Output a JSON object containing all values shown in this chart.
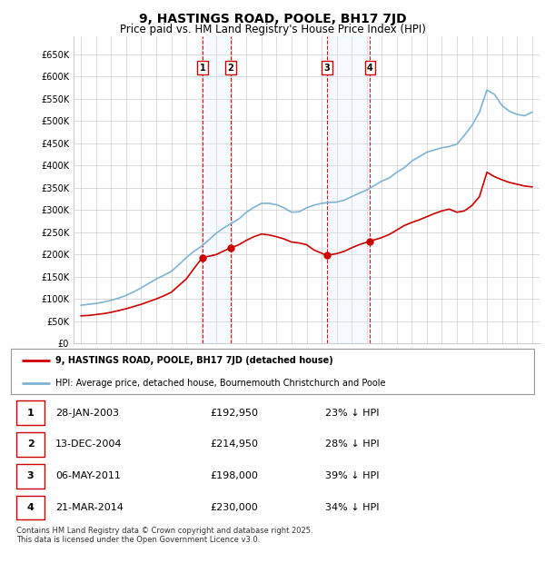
{
  "title": "9, HASTINGS ROAD, POOLE, BH17 7JD",
  "subtitle": "Price paid vs. HM Land Registry's House Price Index (HPI)",
  "ylabel_ticks": [
    "£0",
    "£50K",
    "£100K",
    "£150K",
    "£200K",
    "£250K",
    "£300K",
    "£350K",
    "£400K",
    "£450K",
    "£500K",
    "£550K",
    "£600K",
    "£650K"
  ],
  "ylim": [
    0,
    690000
  ],
  "xlim_start": 1994.5,
  "xlim_end": 2025.5,
  "hpi_color": "#7fb3d3",
  "price_color": "#cc0000",
  "transaction_dates": [
    2003.07,
    2004.95,
    2011.35,
    2014.22
  ],
  "transaction_prices": [
    192950,
    214950,
    198000,
    230000
  ],
  "transaction_labels": [
    "1",
    "2",
    "3",
    "4"
  ],
  "vline_pairs": [
    [
      2003.07,
      2004.95
    ],
    [
      2011.35,
      2014.22
    ]
  ],
  "legend_price_label": "9, HASTINGS ROAD, POOLE, BH17 7JD (detached house)",
  "legend_hpi_label": "HPI: Average price, detached house, Bournemouth Christchurch and Poole",
  "table_rows": [
    [
      "1",
      "28-JAN-2003",
      "£192,950",
      "23% ↓ HPI"
    ],
    [
      "2",
      "13-DEC-2004",
      "£214,950",
      "28% ↓ HPI"
    ],
    [
      "3",
      "06-MAY-2011",
      "£198,000",
      "39% ↓ HPI"
    ],
    [
      "4",
      "21-MAR-2014",
      "£230,000",
      "34% ↓ HPI"
    ]
  ],
  "footnote": "Contains HM Land Registry data © Crown copyright and database right 2025.\nThis data is licensed under the Open Government Licence v3.0.",
  "background_color": "#ffffff",
  "grid_color": "#cccccc",
  "shade_color": "#ddeeff"
}
